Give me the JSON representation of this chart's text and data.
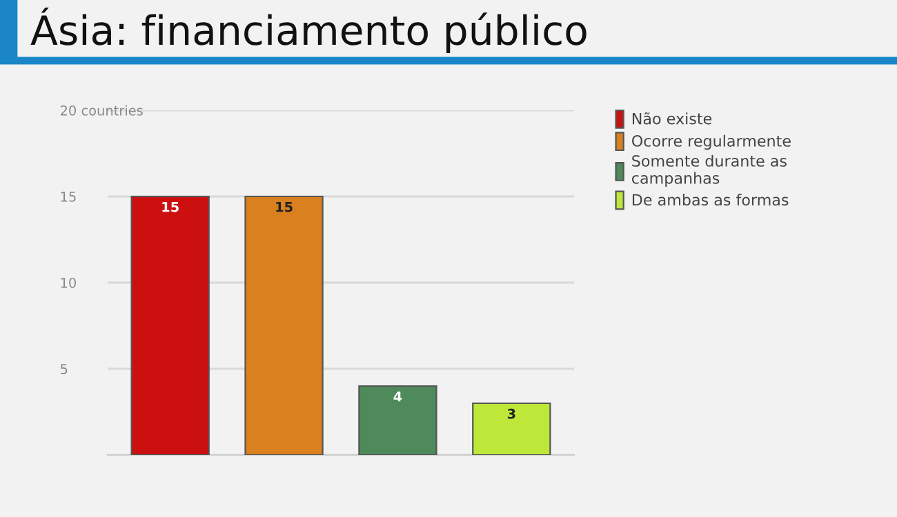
{
  "chart_data": {
    "type": "bar",
    "title": "Ásia: financiamento público",
    "categories": [
      null,
      null,
      null,
      null
    ],
    "series": [
      {
        "name": "Não existe",
        "color": "#cc1010",
        "values": [
          15,
          null,
          null,
          null
        ]
      },
      {
        "name": "Ocorre regularmente",
        "color": "#d9801f",
        "values": [
          null,
          15,
          null,
          null
        ]
      },
      {
        "name": "Somente durante as\ncampanhas",
        "color": "#4e8a5a",
        "values": [
          null,
          null,
          4,
          null
        ]
      },
      {
        "name": "De ambas as formas",
        "color": "#bde83a",
        "values": [
          null,
          null,
          null,
          3
        ]
      }
    ],
    "ylim": [
      0,
      20
    ],
    "yticks": [
      {
        "value": 0,
        "label": null
      },
      5,
      10,
      15,
      {
        "value": 20,
        "label": "20 countries"
      }
    ],
    "grid": "y",
    "legend": "right",
    "data_labels": true,
    "tick_labels": "y"
  }
}
